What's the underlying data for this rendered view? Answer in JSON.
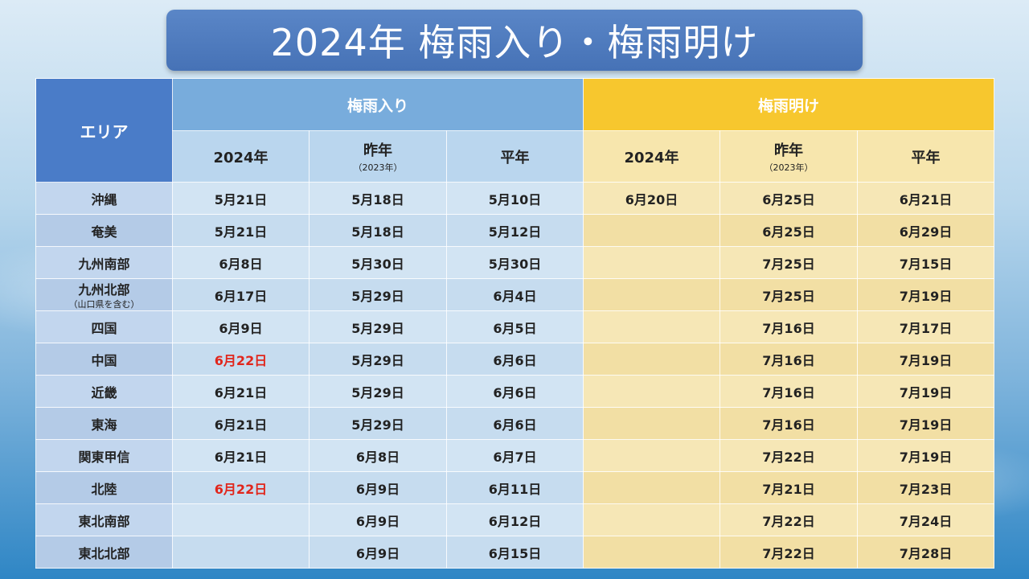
{
  "title": "2024年  梅雨入り・梅雨明け",
  "headers": {
    "area": "エリア",
    "rain_start": "梅雨入り",
    "rain_end": "梅雨明け",
    "year": "2024年",
    "last_year": "昨年",
    "last_year_note": "（2023年）",
    "normal": "平年"
  },
  "colors": {
    "highlight": "#e1261c",
    "rain_header": "#78acdc",
    "end_header": "#f7c72e",
    "area_header": "#4a7cc8"
  },
  "rows": [
    {
      "area": "沖縄",
      "area_sub": "",
      "s2024": "5月21日",
      "s2024_highlight": false,
      "s2023": "5月18日",
      "snorm": "5月10日",
      "e2024": "6月20日",
      "e2023": "6月25日",
      "enorm": "6月21日"
    },
    {
      "area": "奄美",
      "area_sub": "",
      "s2024": "5月21日",
      "s2024_highlight": false,
      "s2023": "5月18日",
      "snorm": "5月12日",
      "e2024": "",
      "e2023": "6月25日",
      "enorm": "6月29日"
    },
    {
      "area": "九州南部",
      "area_sub": "",
      "s2024": "6月8日",
      "s2024_highlight": false,
      "s2023": "5月30日",
      "snorm": "5月30日",
      "e2024": "",
      "e2023": "7月25日",
      "enorm": "7月15日"
    },
    {
      "area": "九州北部",
      "area_sub": "（山口県を含む）",
      "s2024": "6月17日",
      "s2024_highlight": false,
      "s2023": "5月29日",
      "snorm": "6月4日",
      "e2024": "",
      "e2023": "7月25日",
      "enorm": "7月19日"
    },
    {
      "area": "四国",
      "area_sub": "",
      "s2024": "6月9日",
      "s2024_highlight": false,
      "s2023": "5月29日",
      "snorm": "6月5日",
      "e2024": "",
      "e2023": "7月16日",
      "enorm": "7月17日"
    },
    {
      "area": "中国",
      "area_sub": "",
      "s2024": "6月22日",
      "s2024_highlight": true,
      "s2023": "5月29日",
      "snorm": "6月6日",
      "e2024": "",
      "e2023": "7月16日",
      "enorm": "7月19日"
    },
    {
      "area": "近畿",
      "area_sub": "",
      "s2024": "6月21日",
      "s2024_highlight": false,
      "s2023": "5月29日",
      "snorm": "6月6日",
      "e2024": "",
      "e2023": "7月16日",
      "enorm": "7月19日"
    },
    {
      "area": "東海",
      "area_sub": "",
      "s2024": "6月21日",
      "s2024_highlight": false,
      "s2023": "5月29日",
      "snorm": "6月6日",
      "e2024": "",
      "e2023": "7月16日",
      "enorm": "7月19日"
    },
    {
      "area": "関東甲信",
      "area_sub": "",
      "s2024": "6月21日",
      "s2024_highlight": false,
      "s2023": "6月8日",
      "snorm": "6月7日",
      "e2024": "",
      "e2023": "7月22日",
      "enorm": "7月19日"
    },
    {
      "area": "北陸",
      "area_sub": "",
      "s2024": "6月22日",
      "s2024_highlight": true,
      "s2023": "6月9日",
      "snorm": "6月11日",
      "e2024": "",
      "e2023": "7月21日",
      "enorm": "7月23日"
    },
    {
      "area": "東北南部",
      "area_sub": "",
      "s2024": "",
      "s2024_highlight": false,
      "s2023": "6月9日",
      "snorm": "6月12日",
      "e2024": "",
      "e2023": "7月22日",
      "enorm": "7月24日"
    },
    {
      "area": "東北北部",
      "area_sub": "",
      "s2024": "",
      "s2024_highlight": false,
      "s2023": "6月9日",
      "snorm": "6月15日",
      "e2024": "",
      "e2023": "7月22日",
      "enorm": "7月28日"
    }
  ]
}
